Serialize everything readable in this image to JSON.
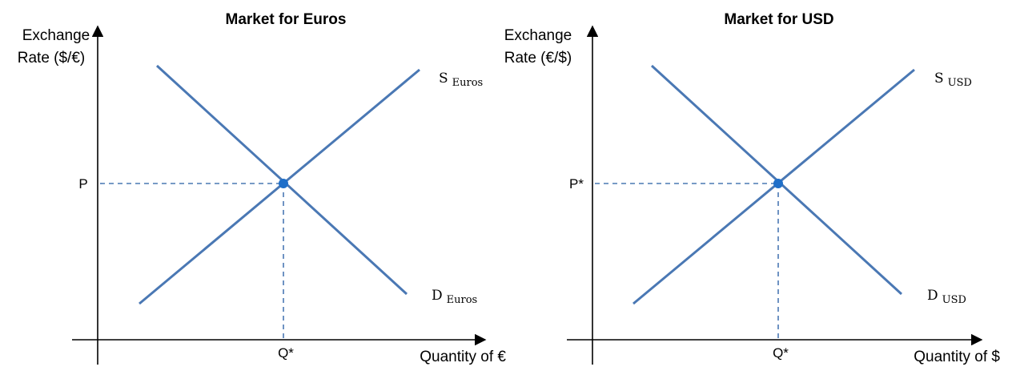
{
  "panels": [
    {
      "title": "Market for Euros",
      "y_axis_label_line1": "Exchange",
      "y_axis_label_line2": "Rate ($/€)",
      "x_axis_label": "Quantity of €",
      "price_label": "P",
      "quantity_label": "Q*",
      "supply_label": "S",
      "supply_subscript": "Euros",
      "demand_label": "D",
      "demand_subscript": "Euros"
    },
    {
      "title": "Market for USD",
      "y_axis_label_line1": "Exchange",
      "y_axis_label_line2": "Rate (€/$)",
      "x_axis_label": "Quantity of $",
      "price_label": "P*",
      "quantity_label": "Q*",
      "supply_label": "S",
      "supply_subscript": "USD",
      "demand_label": "D",
      "demand_subscript": "USD"
    }
  ],
  "colors": {
    "curve": "#4a78b4",
    "equilibrium_point": "#1f6fc9",
    "axis": "#000000"
  }
}
